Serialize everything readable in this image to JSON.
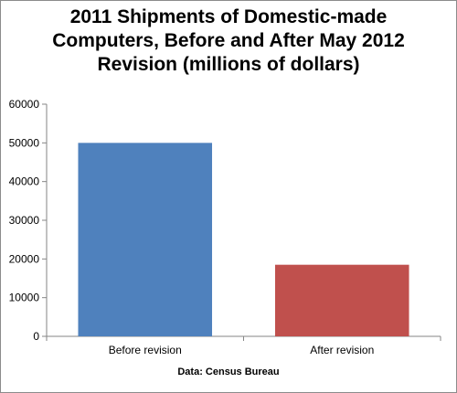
{
  "chart_data": {
    "type": "bar",
    "title_lines": [
      "2011 Shipments of Domestic-made",
      "Computers, Before and After May 2012",
      "Revision  (millions of dollars)"
    ],
    "categories": [
      "Before revision",
      "After revision"
    ],
    "values": [
      50000,
      18500
    ],
    "bar_colors": [
      "#4f81bd",
      "#c0504d"
    ],
    "ylim": [
      0,
      60000
    ],
    "yticks": [
      0,
      10000,
      20000,
      30000,
      40000,
      50000,
      60000
    ],
    "grid": false,
    "legend": "none",
    "xlabel": "",
    "ylabel": "",
    "source": "Data: Census Bureau"
  }
}
